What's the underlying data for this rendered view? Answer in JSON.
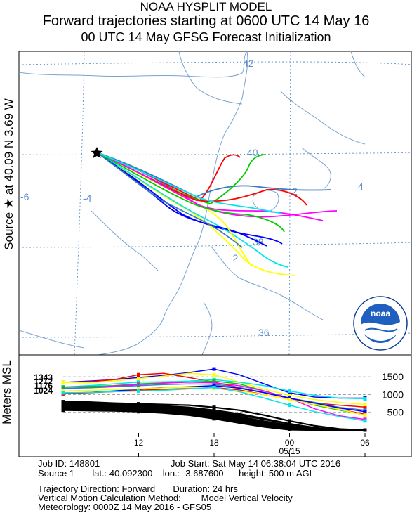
{
  "header": {
    "line1": "NOAA HYSPLIT MODEL",
    "line2": "Forward trajectories starting at 0600 UTC 14 May 16",
    "line3": "00 UTC 14 May    GFSG  Forecast Initialization"
  },
  "side_label": "Source ★ at   40.09 N   3.69 W",
  "map": {
    "lat_labels": [
      "42",
      "40",
      "38",
      "36"
    ],
    "lon_labels": [
      "-6",
      "-4",
      "-2",
      "4",
      "2"
    ],
    "logo_text": "noaa"
  },
  "colors": {
    "black": "#000000",
    "blue": "#0000ff",
    "red": "#ff0000",
    "green": "#00cc00",
    "cyan": "#00e5ee",
    "magenta": "#ff00ff",
    "yellow": "#ffff00",
    "steel": "#3a7bbf"
  },
  "chart_data": {
    "type": "line",
    "title": "Forward trajectories starting at 0600 UTC 14 May 16",
    "ylabel": "Meters MSL",
    "y_ticks": [
      500,
      1000,
      1500
    ],
    "ylim": [
      0,
      1900
    ],
    "x_hours": [
      6,
      8,
      10,
      12,
      14,
      16,
      18,
      20,
      22,
      24,
      26,
      28,
      30
    ],
    "x_tick_labels": [
      "12",
      "18",
      "00",
      "06"
    ],
    "x_tick_hours": [
      12,
      18,
      24,
      30
    ],
    "date_label": "05/15",
    "start_labels": [
      "1343",
      "1212",
      "1176",
      "1024"
    ],
    "series": [
      {
        "color": "#0000ff",
        "values": [
          1343,
          1380,
          1420,
          1480,
          1540,
          1620,
          1720,
          1560,
          1300,
          1050,
          930,
          900,
          900
        ]
      },
      {
        "color": "#ff0000",
        "values": [
          1343,
          1360,
          1420,
          1560,
          1600,
          1480,
          1350,
          1200,
          1050,
          900,
          760,
          700,
          650
        ]
      },
      {
        "color": "#ffff00",
        "values": [
          1343,
          1330,
          1380,
          1450,
          1520,
          1600,
          1560,
          1350,
          1150,
          980,
          860,
          780,
          720
        ]
      },
      {
        "color": "#00e5ee",
        "values": [
          1212,
          1250,
          1300,
          1350,
          1360,
          1380,
          1420,
          1350,
          1250,
          1100,
          980,
          900,
          880
        ]
      },
      {
        "color": "#00cc00",
        "values": [
          1212,
          1230,
          1250,
          1300,
          1330,
          1350,
          1380,
          1300,
          1100,
          900,
          700,
          560,
          430
        ]
      },
      {
        "color": "#ff00ff",
        "values": [
          1176,
          1200,
          1240,
          1280,
          1320,
          1350,
          1330,
          1250,
          1100,
          900,
          600,
          400,
          300
        ]
      },
      {
        "color": "#3a7bbf",
        "values": [
          1176,
          1190,
          1220,
          1250,
          1280,
          1300,
          1290,
          1200,
          1060,
          900,
          780,
          640,
          560
        ]
      },
      {
        "color": "#0000ff",
        "values": [
          1024,
          1060,
          1100,
          1150,
          1200,
          1220,
          1250,
          1180,
          1050,
          900,
          760,
          620,
          520
        ]
      },
      {
        "color": "#ff0000",
        "values": [
          1024,
          1050,
          1080,
          1120,
          1150,
          1170,
          1200,
          1130,
          1000,
          860,
          720,
          580,
          450
        ]
      },
      {
        "color": "#ffff00",
        "values": [
          1100,
          1120,
          1140,
          1160,
          1190,
          1200,
          1180,
          1100,
          1000,
          860,
          720,
          580,
          420
        ]
      },
      {
        "color": "#00e5ee",
        "values": [
          1050,
          1060,
          1080,
          1100,
          1120,
          1160,
          1200,
          1080,
          900,
          700,
          520,
          380,
          260
        ]
      },
      {
        "color": "#000000",
        "values": [
          800,
          790,
          760,
          740,
          720,
          700,
          640,
          560,
          420,
          260,
          120,
          30,
          0
        ]
      },
      {
        "color": "#000000",
        "values": [
          780,
          760,
          740,
          710,
          680,
          640,
          560,
          460,
          320,
          180,
          60,
          0,
          0
        ]
      },
      {
        "color": "#000000",
        "values": [
          760,
          740,
          720,
          690,
          660,
          620,
          520,
          420,
          300,
          170,
          70,
          0,
          0
        ]
      },
      {
        "color": "#000000",
        "values": [
          740,
          720,
          700,
          670,
          640,
          600,
          500,
          380,
          250,
          130,
          30,
          0,
          0
        ]
      },
      {
        "color": "#000000",
        "values": [
          720,
          700,
          680,
          650,
          620,
          580,
          470,
          350,
          230,
          110,
          20,
          0,
          0
        ]
      },
      {
        "color": "#000000",
        "values": [
          700,
          690,
          670,
          640,
          600,
          550,
          450,
          330,
          200,
          90,
          10,
          0,
          0
        ]
      },
      {
        "color": "#000000",
        "values": [
          680,
          670,
          650,
          620,
          580,
          530,
          420,
          300,
          170,
          70,
          0,
          0,
          0
        ]
      },
      {
        "color": "#000000",
        "values": [
          650,
          640,
          620,
          600,
          560,
          500,
          400,
          280,
          160,
          60,
          0,
          0,
          0
        ]
      },
      {
        "color": "#000000",
        "values": [
          620,
          610,
          600,
          580,
          540,
          480,
          380,
          260,
          140,
          40,
          0,
          0,
          0
        ]
      },
      {
        "color": "#000000",
        "values": [
          600,
          590,
          570,
          550,
          520,
          460,
          360,
          240,
          130,
          30,
          0,
          0,
          0
        ]
      },
      {
        "color": "#000000",
        "values": [
          580,
          570,
          560,
          540,
          500,
          440,
          340,
          220,
          110,
          20,
          0,
          0,
          0
        ]
      },
      {
        "color": "#000000",
        "values": [
          560,
          550,
          540,
          520,
          480,
          420,
          320,
          200,
          90,
          10,
          0,
          0,
          0
        ]
      }
    ]
  },
  "footer": {
    "job_id": "Job ID: 148801",
    "job_start": "Job Start: Sat May 14 06:38:04 UTC 2016",
    "source": "Source 1       lat.: 40.092300    lon.: -3.687600      height: 500 m AGL",
    "direction": "Trajectory Direction: Forward       Duration: 24 hrs",
    "vertical": "Vertical Motion Calculation Method:        Model Vertical Velocity",
    "meteorology": "Meteorology: 0000Z 14 May 2016 - GFS05"
  }
}
